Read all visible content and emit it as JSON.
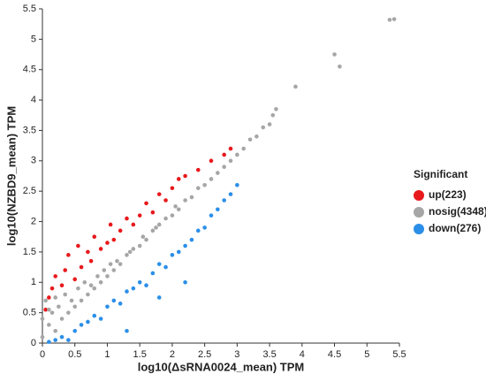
{
  "chart_data": {
    "type": "scatter",
    "x_label": "log10(ΔsRNA0024_mean) TPM",
    "y_label": "log10(NZBD9_mean) TPM",
    "legend_title": "Significant",
    "legend": "right",
    "xlim": [
      0,
      5.5
    ],
    "ylim": [
      0,
      5.5
    ],
    "xticks": [
      0,
      0.5,
      1,
      1.5,
      2,
      2.5,
      3,
      3.5,
      4,
      4.5,
      5,
      5.5
    ],
    "yticks": [
      0,
      0.5,
      1,
      1.5,
      2,
      2.5,
      3,
      3.5,
      4,
      4.5,
      5,
      5.5
    ],
    "series": [
      {
        "name": "up(223)",
        "color": "#e8191c",
        "x": [
          0.05,
          0.1,
          0.15,
          0.2,
          0.3,
          0.35,
          0.4,
          0.5,
          0.55,
          0.6,
          0.7,
          0.75,
          0.8,
          0.9,
          1.0,
          1.05,
          1.1,
          1.2,
          1.3,
          1.4,
          1.5,
          1.6,
          1.7,
          1.8,
          1.9,
          2.0,
          2.1,
          2.2,
          2.4,
          2.6,
          2.8,
          2.9
        ],
        "values": [
          0.55,
          0.75,
          0.9,
          1.1,
          0.95,
          1.2,
          1.45,
          1.05,
          1.6,
          1.25,
          1.5,
          1.35,
          1.75,
          1.55,
          1.65,
          1.95,
          1.7,
          1.85,
          2.05,
          1.95,
          2.1,
          2.3,
          2.15,
          2.45,
          2.35,
          2.55,
          2.7,
          2.75,
          2.85,
          3.0,
          3.1,
          3.2
        ]
      },
      {
        "name": "nosig(4348)",
        "color": "#a6a6a6",
        "x": [
          0,
          0,
          0.05,
          0.1,
          0.15,
          0.2,
          0.25,
          0.3,
          0.35,
          0.4,
          0.45,
          0.5,
          0.55,
          0.6,
          0.65,
          0.7,
          0.75,
          0.8,
          0.85,
          0.9,
          0.95,
          1.0,
          1.05,
          1.1,
          1.15,
          1.2,
          1.3,
          1.35,
          1.4,
          1.5,
          1.55,
          1.6,
          1.7,
          1.75,
          1.8,
          1.9,
          2.0,
          2.05,
          2.1,
          2.2,
          2.3,
          2.4,
          2.5,
          2.6,
          2.7,
          2.8,
          2.9,
          3.0,
          3.1,
          3.2,
          3.3,
          3.4,
          3.5,
          3.55,
          3.6,
          0.1,
          0.2,
          3.9,
          4.5,
          4.58,
          5.35,
          5.42
        ],
        "values": [
          0.1,
          0.4,
          0.7,
          0.3,
          0.5,
          0.2,
          0.6,
          0.4,
          0.8,
          0.5,
          0.7,
          0.6,
          0.9,
          0.7,
          1.0,
          0.8,
          0.95,
          0.9,
          1.1,
          1.0,
          1.2,
          1.1,
          1.3,
          1.2,
          1.35,
          1.3,
          1.45,
          1.5,
          1.55,
          1.6,
          1.75,
          1.7,
          1.85,
          1.9,
          1.95,
          2.05,
          2.1,
          2.25,
          2.2,
          2.35,
          2.4,
          2.55,
          2.6,
          2.7,
          2.8,
          2.9,
          3.0,
          3.1,
          3.2,
          3.35,
          3.4,
          3.55,
          3.6,
          3.75,
          3.85,
          0.55,
          0.75,
          4.22,
          4.75,
          4.55,
          5.32,
          5.33
        ]
      },
      {
        "name": "down(276)",
        "color": "#2b8fe8",
        "x": [
          0.1,
          0.2,
          0.3,
          0.4,
          0.5,
          0.6,
          0.7,
          0.8,
          0.9,
          1.0,
          1.1,
          1.2,
          1.3,
          1.3,
          1.4,
          1.5,
          1.6,
          1.7,
          1.8,
          1.9,
          2.0,
          2.1,
          2.2,
          2.3,
          2.4,
          2.5,
          2.6,
          2.7,
          2.8,
          2.9,
          3.0,
          2.2,
          1.8
        ],
        "values": [
          0.02,
          0.05,
          0.1,
          0.05,
          0.2,
          0.3,
          0.35,
          0.45,
          0.4,
          0.6,
          0.7,
          0.65,
          0.2,
          0.85,
          0.9,
          1.0,
          0.95,
          1.15,
          1.3,
          1.25,
          1.45,
          1.5,
          1.6,
          1.7,
          1.85,
          1.9,
          2.1,
          2.2,
          2.35,
          2.45,
          2.6,
          1.0,
          0.75
        ]
      }
    ]
  }
}
